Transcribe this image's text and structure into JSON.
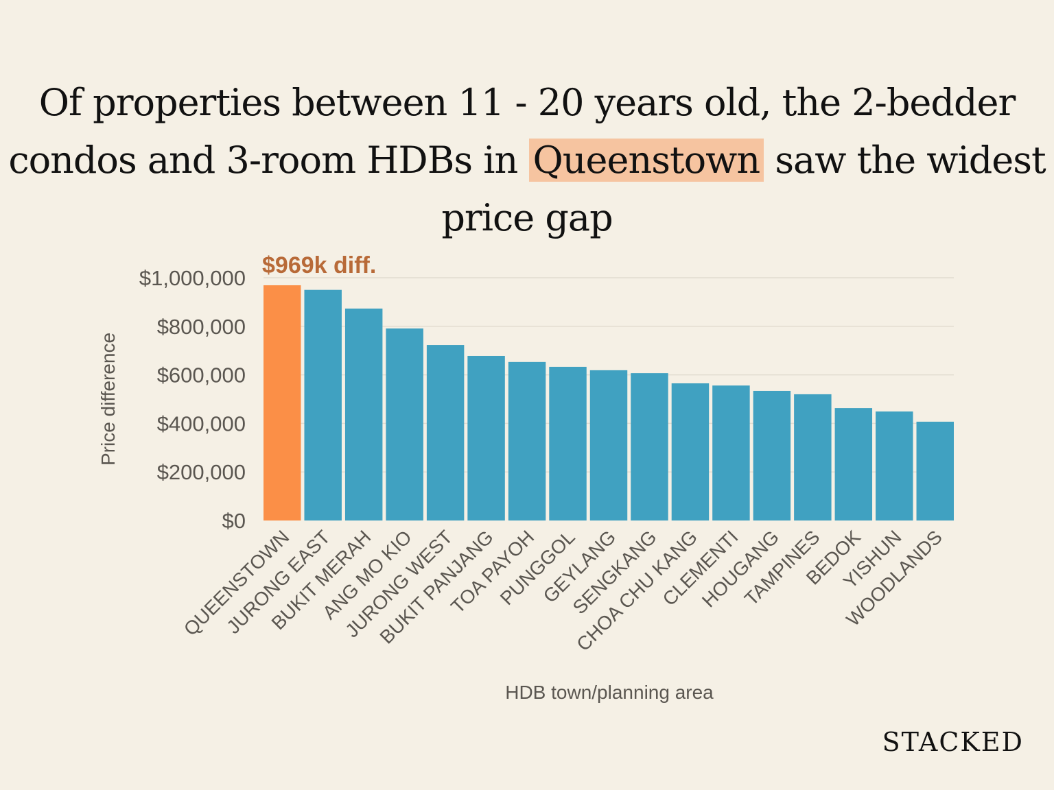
{
  "title": {
    "part1": "Of properties between 11 - 20 years old, the 2-bedder condos and 3-room HDBs in ",
    "highlight": "Queenstown",
    "part2": " saw the widest price gap"
  },
  "logo": "STACKED",
  "chart_data": {
    "type": "bar",
    "xlabel": "HDB town/planning area",
    "ylabel": "Price difference",
    "ylim": [
      0,
      1000000
    ],
    "yticks": [
      0,
      200000,
      400000,
      600000,
      800000,
      1000000
    ],
    "ytick_labels": [
      "$0",
      "$200,000",
      "$400,000",
      "$600,000",
      "$800,000",
      "$1,000,000"
    ],
    "grid": true,
    "categories": [
      "QUEENSTOWN",
      "JURONG EAST",
      "BUKIT MERAH",
      "ANG MO KIO",
      "JURONG WEST",
      "BUKIT PANJANG",
      "TOA PAYOH",
      "PUNGGOL",
      "GEYLANG",
      "SENGKANG",
      "CHOA CHU KANG",
      "CLEMENTI",
      "HOUGANG",
      "TAMPINES",
      "BEDOK",
      "YISHUN",
      "WOODLANDS"
    ],
    "values": [
      969000,
      950000,
      873000,
      791000,
      723000,
      678000,
      653000,
      633000,
      619000,
      607000,
      565000,
      556000,
      534000,
      520000,
      463000,
      449000,
      407000
    ],
    "annotation": "$969k diff.",
    "highlight_index": 0,
    "colors": {
      "highlight": "#fb8f47",
      "bar": "#40a1c1",
      "annotation": "#b86a38",
      "grid": "#e2dcd0"
    }
  }
}
